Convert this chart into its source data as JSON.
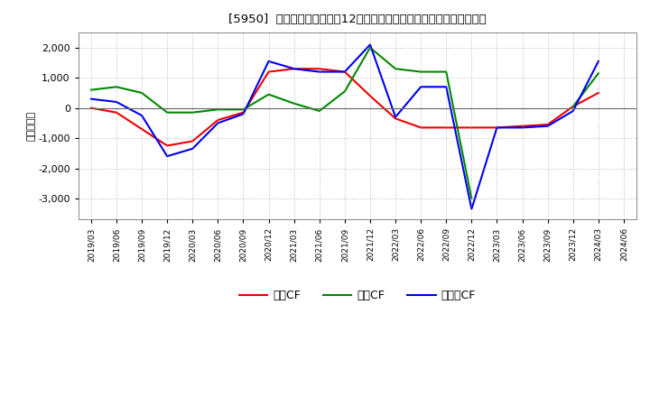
{
  "title": "[5950]  キャッシュフローの12か月移動合計の対前年同期増減額の推移",
  "ylabel": "（百万円）",
  "background_color": "#ffffff",
  "plot_bg_color": "#ffffff",
  "grid_color": "#9999aa",
  "ylim": [
    -3700,
    2500
  ],
  "yticks": [
    -3000,
    -2000,
    -1000,
    0,
    1000,
    2000
  ],
  "x_labels": [
    "2019/03",
    "2019/06",
    "2019/09",
    "2019/12",
    "2020/03",
    "2020/06",
    "2020/09",
    "2020/12",
    "2021/03",
    "2021/06",
    "2021/09",
    "2021/12",
    "2022/03",
    "2022/06",
    "2022/09",
    "2022/12",
    "2023/03",
    "2023/06",
    "2023/09",
    "2023/12",
    "2024/03",
    "2024/06"
  ],
  "eigyo_cf": [
    0,
    -150,
    -700,
    -1250,
    -1100,
    -400,
    -150,
    1200,
    1300,
    1300,
    1200,
    400,
    -350,
    -650,
    -650,
    -650,
    -650,
    -600,
    -550,
    50,
    500,
    null
  ],
  "toshi_cf": [
    600,
    700,
    500,
    -150,
    -150,
    -50,
    -50,
    450,
    150,
    -100,
    550,
    2000,
    1300,
    1200,
    1200,
    -3000,
    null,
    null,
    null,
    50,
    1150,
    null
  ],
  "free_cf": [
    300,
    200,
    -250,
    -1600,
    -1350,
    -500,
    -200,
    1550,
    1300,
    1200,
    1200,
    2100,
    -300,
    700,
    700,
    -3350,
    -650,
    -650,
    -600,
    -100,
    1550,
    null
  ],
  "eigyo_color": "#ee0000",
  "toshi_color": "#008800",
  "free_color": "#0000ee",
  "legend_labels": [
    "営業CF",
    "投資CF",
    "フリーCF"
  ]
}
